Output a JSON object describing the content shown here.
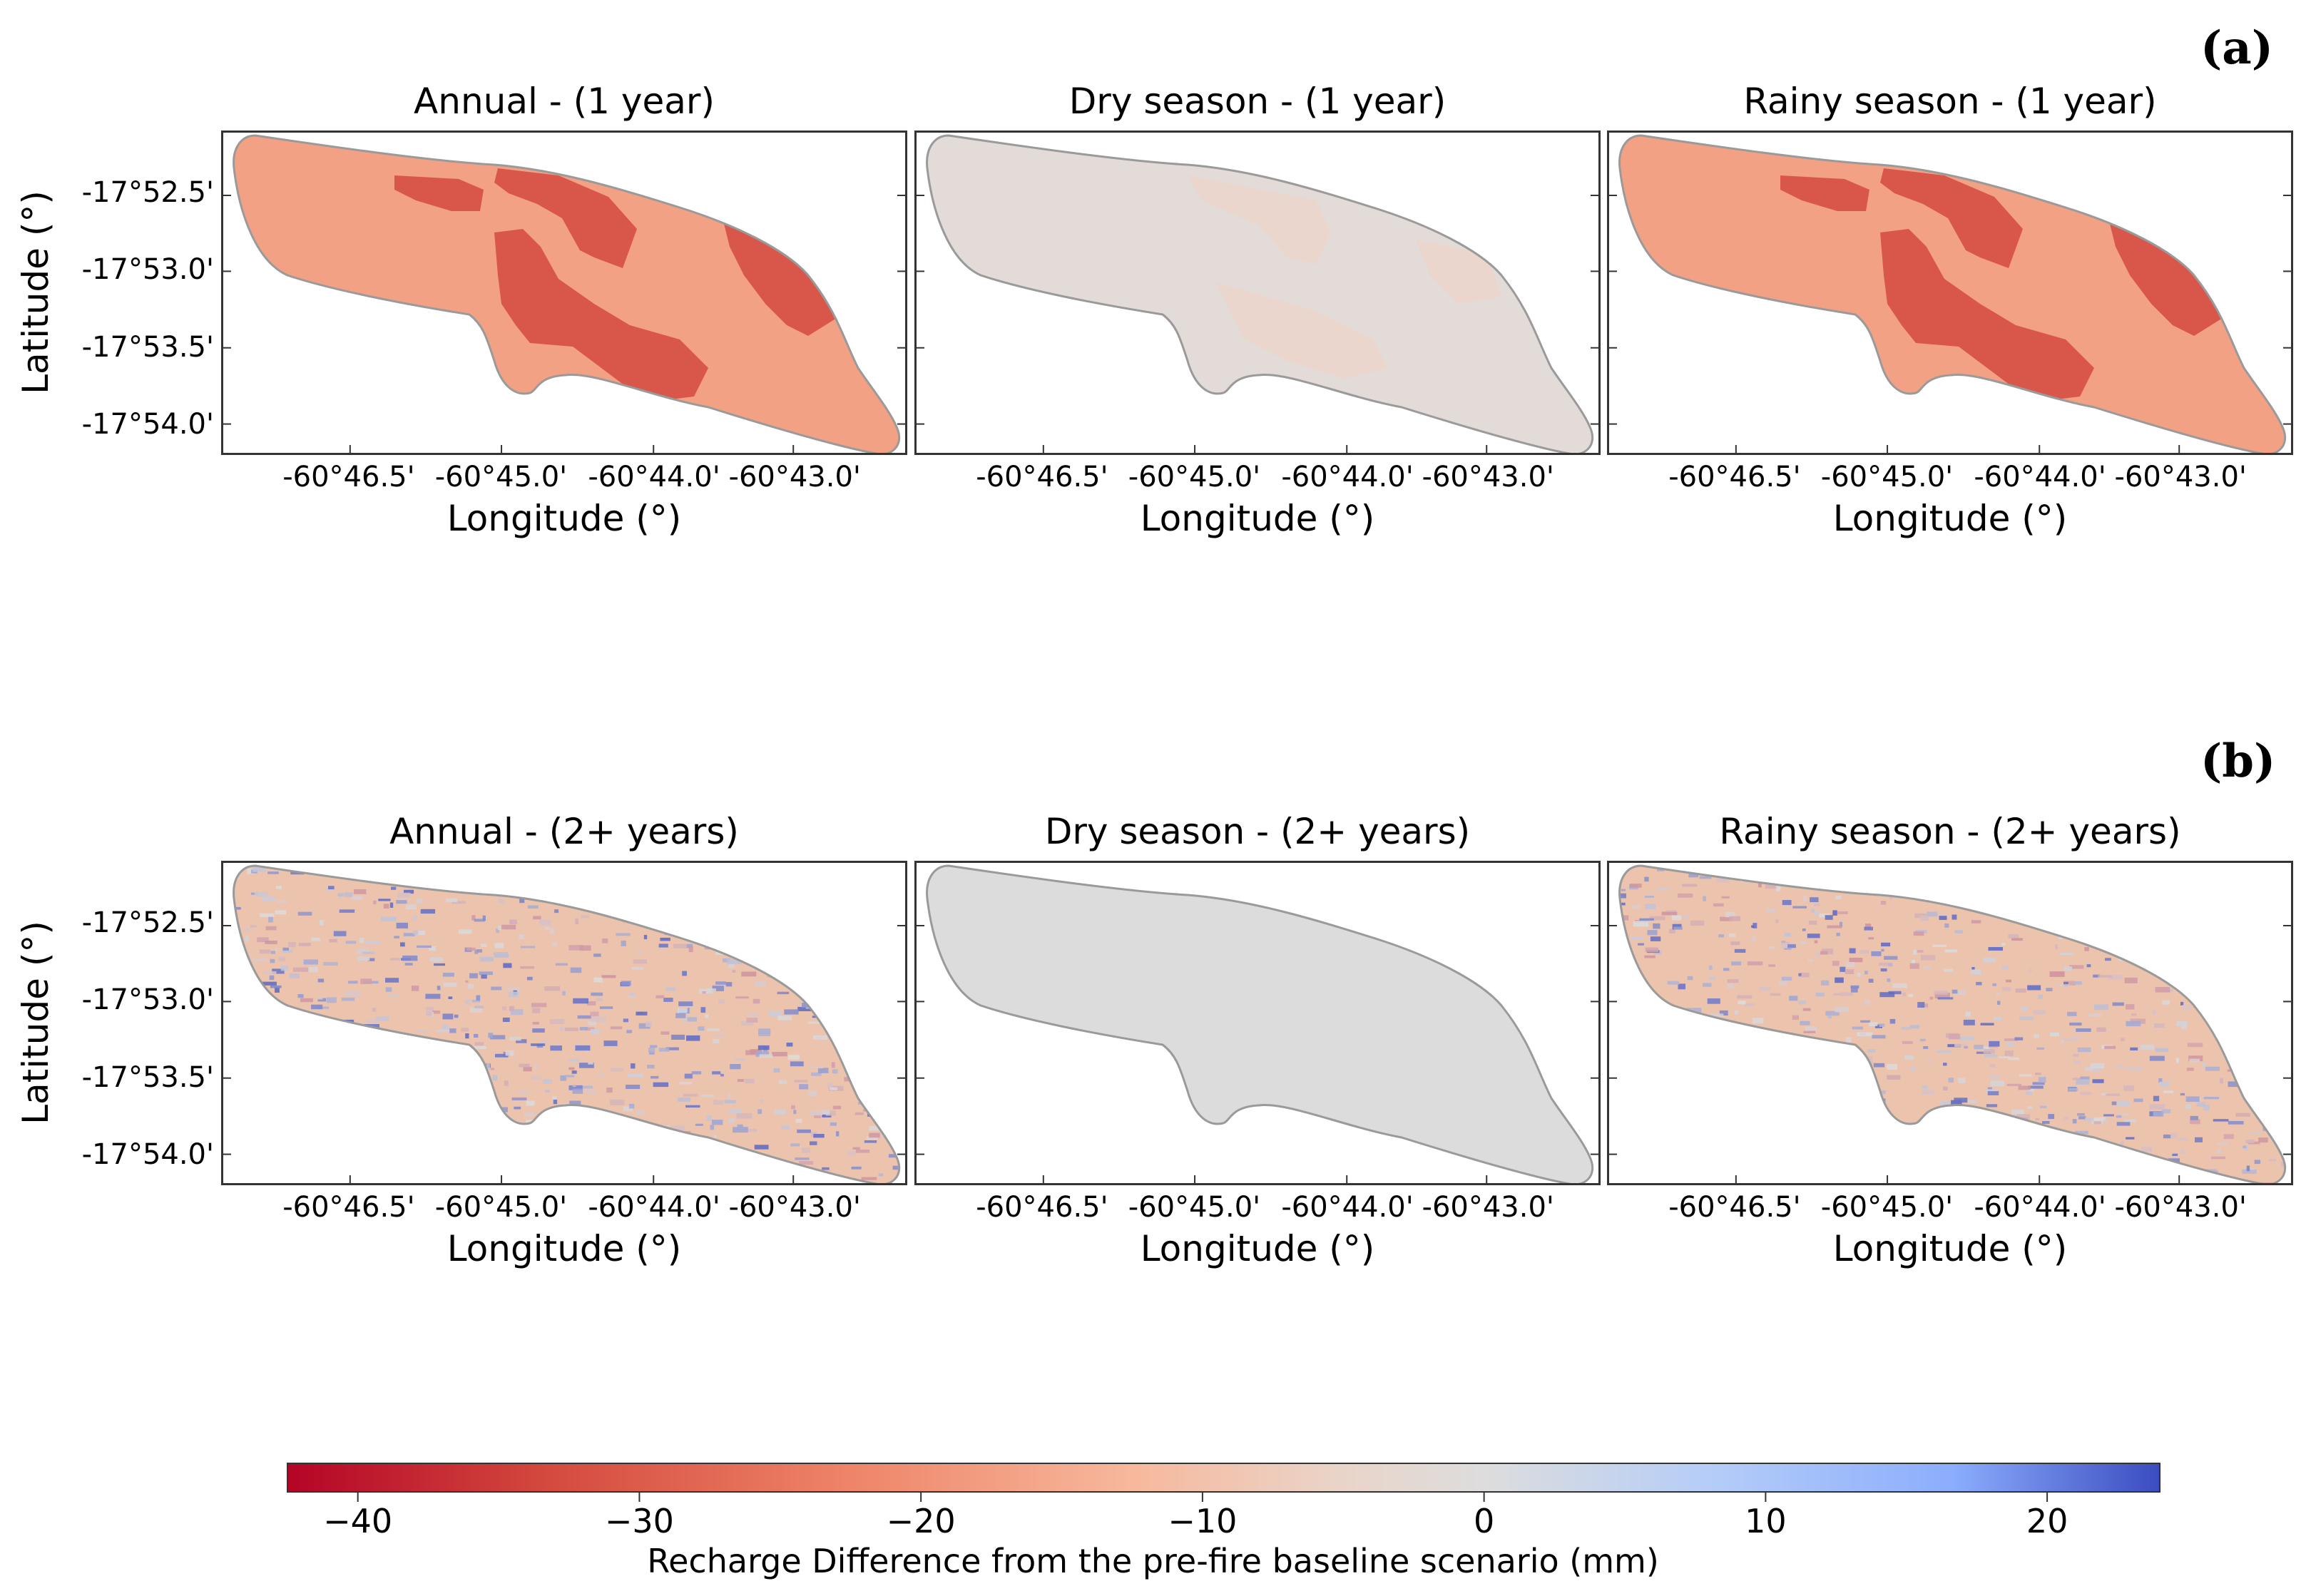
{
  "figure": {
    "panel_a_tag": "(a)",
    "panel_b_tag": "(b)",
    "ylabel": "Latitude (°)",
    "xlabel": "Longitude (°)",
    "x_ticks": [
      "-60°46.5'",
      "-60°45.0'",
      "-60°44.0'",
      "-60°43.0'"
    ],
    "y_ticks": [
      "-17°52.5'",
      "-17°53.0'",
      "-17°53.5'",
      "-17°54.0'"
    ]
  },
  "chart_data": {
    "type": "heatmap",
    "maps": [
      {
        "title": "Annual - (1 year)",
        "row": "a",
        "pattern": "zonal",
        "base_value": -20,
        "zone_value": -30,
        "fill_color": "#f3a184",
        "zone_color": "#d9574a"
      },
      {
        "title": "Dry season - (1 year)",
        "row": "a",
        "pattern": "zonal",
        "base_value": -2,
        "zone_value": -5,
        "fill_color": "#e2dbd8",
        "zone_color": "#ead6cc"
      },
      {
        "title": "Rainy season - (1 year)",
        "row": "a",
        "pattern": "zonal",
        "base_value": -20,
        "zone_value": -30,
        "fill_color": "#f3a184",
        "zone_color": "#d9574a"
      },
      {
        "title": "Annual - (2+ years)",
        "row": "b",
        "pattern": "speckled",
        "value_range": [
          -15,
          20
        ],
        "fill_color": "#ecc3ad"
      },
      {
        "title": "Dry season - (2+ years)",
        "row": "b",
        "pattern": "uniform",
        "base_value": 0,
        "fill_color": "#dcdcdc"
      },
      {
        "title": "Rainy season - (2+ years)",
        "row": "b",
        "pattern": "speckled",
        "value_range": [
          -15,
          20
        ],
        "fill_color": "#ecc3ad"
      }
    ],
    "x_ticks": [
      "-60°46.5'",
      "-60°45.0'",
      "-60°44.0'",
      "-60°43.0'"
    ],
    "y_ticks": [
      "-17°52.5'",
      "-17°53.0'",
      "-17°53.5'",
      "-17°54.0'"
    ],
    "xlabel": "Longitude (°)",
    "ylabel": "Latitude (°)",
    "colorbar": {
      "label": "Recharge Difference from the pre-fire baseline scenario (mm)",
      "vmin": -42.5,
      "vmax": 24,
      "ticks": [
        -40,
        -30,
        -20,
        -10,
        0,
        10,
        20
      ],
      "tick_labels": [
        "−40",
        "−30",
        "−20",
        "−10",
        "0",
        "10",
        "20"
      ],
      "colormap": "coolwarm_r",
      "low_color": "#b40426",
      "mid_color": "#dddddd",
      "high_color": "#3b4cc0"
    }
  }
}
